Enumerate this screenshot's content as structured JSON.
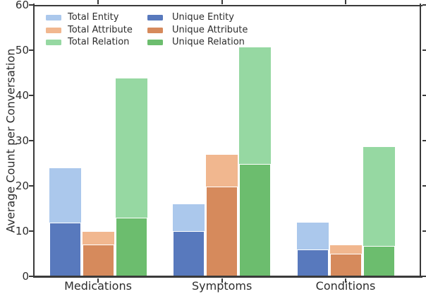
{
  "chart_data": {
    "type": "bar",
    "title": "",
    "xlabel": "",
    "ylabel": "Average Count per Conversation",
    "categories": [
      "Medications",
      "Symptoms",
      "Conditions"
    ],
    "ylim": [
      0,
      60
    ],
    "yticks": [
      0,
      10,
      20,
      30,
      40,
      50,
      60
    ],
    "grid": false,
    "legend_position": "upper-left, two columns, no frame",
    "bar_style": "total bars (light) drawn full height with unique bars (dark, white-edged) overlaid from zero",
    "series": [
      {
        "name": "Total Entity",
        "kind": "total",
        "color": "#abc8ec",
        "values": [
          23.9,
          16.0,
          11.9
        ]
      },
      {
        "name": "Unique Entity",
        "kind": "unique",
        "color": "#5879bd",
        "values": [
          11.9,
          10.0,
          6.0
        ]
      },
      {
        "name": "Total Attribute",
        "kind": "total",
        "color": "#f1b78f",
        "values": [
          9.8,
          26.9,
          6.9
        ]
      },
      {
        "name": "Unique Attribute",
        "kind": "unique",
        "color": "#d68a5c",
        "values": [
          7.0,
          19.9,
          5.0
        ]
      },
      {
        "name": "Total Relation",
        "kind": "total",
        "color": "#96d8a2",
        "values": [
          43.8,
          50.6,
          28.6
        ]
      },
      {
        "name": "Unique Relation",
        "kind": "unique",
        "color": "#6cbd6e",
        "values": [
          12.9,
          24.8,
          6.8
        ]
      }
    ],
    "legend": {
      "column1": [
        "Total Entity",
        "Total Attribute",
        "Total Relation"
      ],
      "column2": [
        "Unique Entity",
        "Unique Attribute",
        "Unique Relation"
      ]
    }
  },
  "colors": {
    "axis": "#3a3a3a",
    "text": "#2d2d2d",
    "background": "#ffffff"
  }
}
